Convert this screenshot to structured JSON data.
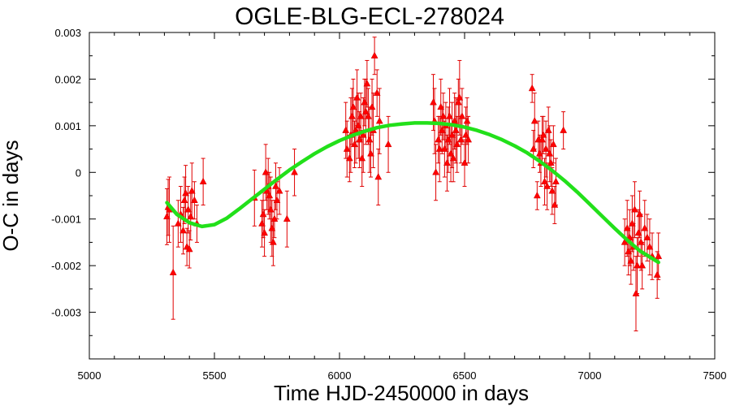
{
  "chart_data": {
    "type": "scatter",
    "title": "OGLE-BLG-ECL-278024",
    "xlabel": "Time HJD-2450000 in days",
    "ylabel": "O-C in days",
    "xlim": [
      5000,
      7500
    ],
    "ylim": [
      -0.004,
      0.003
    ],
    "xticks": [
      5000,
      5500,
      6000,
      6500,
      7000,
      7500
    ],
    "yticks": [
      -0.003,
      -0.002,
      -0.001,
      0,
      0.001,
      0.002,
      0.003
    ],
    "ytick_labels": [
      "-0.003",
      "-0.002",
      "-0.001",
      "0",
      "0.001",
      "0.002",
      "0.003"
    ],
    "grid": false,
    "legend": "none",
    "marker_color": "#ff0000",
    "fit_color": "#22e01a",
    "series": [
      {
        "kind": "points-with-errorbars",
        "points": [
          {
            "x": 5310,
            "y": -0.00095,
            "err": 0.0006
          },
          {
            "x": 5315,
            "y": -0.00075,
            "err": 0.0006
          },
          {
            "x": 5320,
            "y": -0.0008,
            "err": 0.0007
          },
          {
            "x": 5335,
            "y": -0.00215,
            "err": 0.001
          },
          {
            "x": 5355,
            "y": -0.0011,
            "err": 0.0005
          },
          {
            "x": 5365,
            "y": -0.0009,
            "err": 0.0006
          },
          {
            "x": 5375,
            "y": -0.00125,
            "err": 0.0005
          },
          {
            "x": 5380,
            "y": -0.0006,
            "err": 0.0005
          },
          {
            "x": 5385,
            "y": -0.00045,
            "err": 0.0006
          },
          {
            "x": 5390,
            "y": -0.0016,
            "err": 0.0004
          },
          {
            "x": 5395,
            "y": -0.0008,
            "err": 0.0005
          },
          {
            "x": 5400,
            "y": -0.00165,
            "err": 0.0004
          },
          {
            "x": 5405,
            "y": -0.00095,
            "err": 0.0005
          },
          {
            "x": 5410,
            "y": -0.0004,
            "err": 0.0006
          },
          {
            "x": 5420,
            "y": -0.0006,
            "err": 0.0004
          },
          {
            "x": 5430,
            "y": -0.0011,
            "err": 0.0004
          },
          {
            "x": 5455,
            "y": -0.0002,
            "err": 0.0005
          },
          {
            "x": 5660,
            "y": -0.00055,
            "err": 0.0006
          },
          {
            "x": 5690,
            "y": -0.0011,
            "err": 0.0005
          },
          {
            "x": 5695,
            "y": -0.0009,
            "err": 0.0005
          },
          {
            "x": 5700,
            "y": -0.0013,
            "err": 0.0005
          },
          {
            "x": 5705,
            "y": 0.0,
            "err": 0.0006
          },
          {
            "x": 5710,
            "y": -0.0004,
            "err": 0.0004
          },
          {
            "x": 5715,
            "y": -0.0003,
            "err": 0.0006
          },
          {
            "x": 5720,
            "y": -0.0005,
            "err": 0.0005
          },
          {
            "x": 5725,
            "y": -0.0008,
            "err": 0.0007
          },
          {
            "x": 5730,
            "y": -0.0012,
            "err": 0.0006
          },
          {
            "x": 5735,
            "y": -0.0015,
            "err": 0.0005
          },
          {
            "x": 5740,
            "y": -0.001,
            "err": 0.0004
          },
          {
            "x": 5745,
            "y": -0.0003,
            "err": 0.0005
          },
          {
            "x": 5750,
            "y": -0.0006,
            "err": 0.0004
          },
          {
            "x": 5760,
            "y": -0.0004,
            "err": 0.0005
          },
          {
            "x": 5790,
            "y": -0.001,
            "err": 0.0006
          },
          {
            "x": 5820,
            "y": 0.0,
            "err": 0.0005
          },
          {
            "x": 6025,
            "y": 0.0009,
            "err": 0.0006
          },
          {
            "x": 6030,
            "y": 0.0005,
            "err": 0.0006
          },
          {
            "x": 6040,
            "y": 0.0003,
            "err": 0.0005
          },
          {
            "x": 6045,
            "y": 0.0008,
            "err": 0.0008
          },
          {
            "x": 6050,
            "y": 0.0012,
            "err": 0.0006
          },
          {
            "x": 6055,
            "y": 0.0014,
            "err": 0.0006
          },
          {
            "x": 6060,
            "y": 0.0006,
            "err": 0.0005
          },
          {
            "x": 6065,
            "y": 0.0009,
            "err": 0.0007
          },
          {
            "x": 6070,
            "y": 0.0016,
            "err": 0.0006
          },
          {
            "x": 6075,
            "y": 0.001,
            "err": 0.0007
          },
          {
            "x": 6080,
            "y": 0.0007,
            "err": 0.0006
          },
          {
            "x": 6085,
            "y": 0.0012,
            "err": 0.0005
          },
          {
            "x": 6090,
            "y": 0.0003,
            "err": 0.0006
          },
          {
            "x": 6095,
            "y": 0.0008,
            "err": 0.0008
          },
          {
            "x": 6100,
            "y": 0.0015,
            "err": 0.0005
          },
          {
            "x": 6105,
            "y": 0.0013,
            "err": 0.0007
          },
          {
            "x": 6110,
            "y": 0.0019,
            "err": 0.0005
          },
          {
            "x": 6115,
            "y": 0.0012,
            "err": 0.0006
          },
          {
            "x": 6120,
            "y": 0.0007,
            "err": 0.0007
          },
          {
            "x": 6125,
            "y": 0.0004,
            "err": 0.0005
          },
          {
            "x": 6130,
            "y": 0.0014,
            "err": 0.0006
          },
          {
            "x": 6135,
            "y": 0.0009,
            "err": 0.0008
          },
          {
            "x": 6140,
            "y": 0.0025,
            "err": 0.0004
          },
          {
            "x": 6150,
            "y": 0.0017,
            "err": 0.0005
          },
          {
            "x": 6155,
            "y": -0.0001,
            "err": 0.0006
          },
          {
            "x": 6160,
            "y": 0.0011,
            "err": 0.0007
          },
          {
            "x": 6195,
            "y": 0.0006,
            "err": 0.0006
          },
          {
            "x": 6375,
            "y": 0.0015,
            "err": 0.0006
          },
          {
            "x": 6380,
            "y": 0.0011,
            "err": 0.0007
          },
          {
            "x": 6385,
            "y": 0.0,
            "err": 0.0006
          },
          {
            "x": 6395,
            "y": 0.0007,
            "err": 0.0005
          },
          {
            "x": 6400,
            "y": 0.0005,
            "err": 0.0007
          },
          {
            "x": 6405,
            "y": 0.0014,
            "err": 0.0006
          },
          {
            "x": 6410,
            "y": 0.0009,
            "err": 0.0005
          },
          {
            "x": 6415,
            "y": 0.0012,
            "err": 0.0005
          },
          {
            "x": 6420,
            "y": 0.0005,
            "err": 0.0006
          },
          {
            "x": 6425,
            "y": 0.001,
            "err": 0.0005
          },
          {
            "x": 6430,
            "y": 0.0002,
            "err": 0.0006
          },
          {
            "x": 6435,
            "y": 0.0007,
            "err": 0.0007
          },
          {
            "x": 6440,
            "y": 0.0012,
            "err": 0.0006
          },
          {
            "x": 6445,
            "y": 0.0004,
            "err": 0.0006
          },
          {
            "x": 6450,
            "y": 0.0008,
            "err": 0.0007
          },
          {
            "x": 6455,
            "y": 0.0003,
            "err": 0.0005
          },
          {
            "x": 6460,
            "y": 0.0011,
            "err": 0.0006
          },
          {
            "x": 6465,
            "y": 0.0009,
            "err": 0.0007
          },
          {
            "x": 6470,
            "y": 0.0006,
            "err": 0.0006
          },
          {
            "x": 6475,
            "y": 0.0015,
            "err": 0.0005
          },
          {
            "x": 6480,
            "y": 0.0016,
            "err": 0.0008
          },
          {
            "x": 6485,
            "y": 0.0007,
            "err": 0.0005
          },
          {
            "x": 6490,
            "y": 0.0012,
            "err": 0.0006
          },
          {
            "x": 6500,
            "y": 0.0002,
            "err": 0.0005
          },
          {
            "x": 6505,
            "y": 0.0008,
            "err": 0.0006
          },
          {
            "x": 6510,
            "y": 0.0011,
            "err": 0.0005
          },
          {
            "x": 6515,
            "y": 0.0007,
            "err": 0.0005
          },
          {
            "x": 6770,
            "y": 0.0018,
            "err": 0.0003
          },
          {
            "x": 6775,
            "y": 0.0005,
            "err": 0.0004
          },
          {
            "x": 6780,
            "y": 0.0011,
            "err": 0.0006
          },
          {
            "x": 6790,
            "y": -0.0005,
            "err": 0.0003
          },
          {
            "x": 6795,
            "y": 0.0007,
            "err": 0.0004
          },
          {
            "x": 6800,
            "y": 0.0004,
            "err": 0.0004
          },
          {
            "x": 6805,
            "y": 0.0002,
            "err": 0.0005
          },
          {
            "x": 6810,
            "y": 0.0007,
            "err": 0.0005
          },
          {
            "x": 6815,
            "y": 0.0008,
            "err": 0.0004
          },
          {
            "x": 6820,
            "y": -0.0002,
            "err": 0.0005
          },
          {
            "x": 6825,
            "y": 0.0005,
            "err": 0.0006
          },
          {
            "x": 6830,
            "y": -0.0003,
            "err": 0.0005
          },
          {
            "x": 6835,
            "y": 0.0009,
            "err": 0.0005
          },
          {
            "x": 6840,
            "y": 0.0004,
            "err": 0.0006
          },
          {
            "x": 6845,
            "y": 0.0002,
            "err": 0.0005
          },
          {
            "x": 6850,
            "y": -0.0004,
            "err": 0.0005
          },
          {
            "x": 6855,
            "y": 0.0006,
            "err": 0.0004
          },
          {
            "x": 6860,
            "y": -0.0007,
            "err": 0.0004
          },
          {
            "x": 6865,
            "y": -0.0002,
            "err": 0.0005
          },
          {
            "x": 6895,
            "y": 0.0009,
            "err": 0.0004
          },
          {
            "x": 7140,
            "y": -0.0015,
            "err": 0.0005
          },
          {
            "x": 7150,
            "y": -0.0012,
            "err": 0.0006
          },
          {
            "x": 7155,
            "y": -0.0017,
            "err": 0.0005
          },
          {
            "x": 7160,
            "y": -0.0014,
            "err": 0.0006
          },
          {
            "x": 7165,
            "y": -0.0019,
            "err": 0.0005
          },
          {
            "x": 7170,
            "y": -0.0011,
            "err": 0.0006
          },
          {
            "x": 7175,
            "y": -0.0016,
            "err": 0.0005
          },
          {
            "x": 7180,
            "y": -0.0008,
            "err": 0.0006
          },
          {
            "x": 7185,
            "y": -0.0026,
            "err": 0.0008
          },
          {
            "x": 7190,
            "y": -0.002,
            "err": 0.0006
          },
          {
            "x": 7195,
            "y": -0.0013,
            "err": 0.0005
          },
          {
            "x": 7200,
            "y": -0.0009,
            "err": 0.0005
          },
          {
            "x": 7205,
            "y": -0.0015,
            "err": 0.0006
          },
          {
            "x": 7210,
            "y": -0.002,
            "err": 0.0005
          },
          {
            "x": 7220,
            "y": -0.0012,
            "err": 0.0006
          },
          {
            "x": 7230,
            "y": -0.0014,
            "err": 0.0005
          },
          {
            "x": 7240,
            "y": -0.0016,
            "err": 0.0006
          },
          {
            "x": 7250,
            "y": -0.0018,
            "err": 0.0005
          },
          {
            "x": 7270,
            "y": -0.0022,
            "err": 0.0005
          },
          {
            "x": 7275,
            "y": -0.0018,
            "err": 0.0005
          }
        ]
      },
      {
        "kind": "fit-line",
        "x": [
          5310,
          5350,
          5400,
          5450,
          5500,
          5550,
          5600,
          5650,
          5700,
          5750,
          5800,
          5850,
          5900,
          5950,
          6000,
          6050,
          6100,
          6150,
          6200,
          6250,
          6300,
          6350,
          6400,
          6450,
          6500,
          6550,
          6600,
          6650,
          6700,
          6750,
          6800,
          6850,
          6900,
          6950,
          7000,
          7050,
          7100,
          7150,
          7200,
          7275
        ],
        "y": [
          -0.00065,
          -0.0009,
          -0.00108,
          -0.00116,
          -0.00112,
          -0.00098,
          -0.00078,
          -0.00057,
          -0.00036,
          -0.00015,
          5e-05,
          0.00023,
          0.0004,
          0.00055,
          0.00068,
          0.00079,
          0.00088,
          0.00096,
          0.00101,
          0.00104,
          0.00106,
          0.00106,
          0.00105,
          0.00102,
          0.00097,
          0.0009,
          0.00081,
          0.0007,
          0.00057,
          0.00042,
          0.00024,
          4e-05,
          -0.00018,
          -0.00042,
          -0.00068,
          -0.00094,
          -0.0012,
          -0.00145,
          -0.00168,
          -0.00193
        ]
      }
    ]
  }
}
